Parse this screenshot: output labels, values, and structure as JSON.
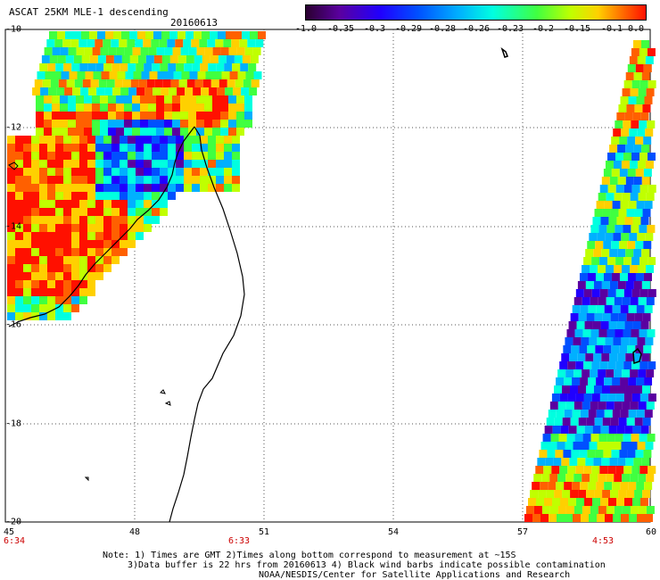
{
  "header": {
    "title": "ASCAT 25KM MLE-1 descending",
    "date": "20160613"
  },
  "colorbar": {
    "ticks": [
      "-1.0",
      "-0.35",
      "-0.3",
      "-0.29",
      "-0.28",
      "-0.26",
      "-0.23",
      "-0.2",
      "-0.15",
      "-0.1",
      "0.0"
    ],
    "colors": [
      "#2a0030",
      "#5a00a0",
      "#2000ff",
      "#0050ff",
      "#00b0ff",
      "#00ffe0",
      "#40ff40",
      "#c0ff00",
      "#ffd000",
      "#ff6000",
      "#ff1000"
    ]
  },
  "axes": {
    "lat_labels": [
      "-10",
      "-12",
      "-14",
      "-16",
      "-18",
      "-20"
    ],
    "lon_labels": [
      "45",
      "48",
      "51",
      "54",
      "57",
      "60"
    ],
    "times": [
      "6:34",
      "6:33",
      "4:53"
    ]
  },
  "notes": {
    "line1": "Note: 1) Times are GMT 2)Times along bottom correspond to measurement at ~15S",
    "line2": "3)Data buffer is 22 hrs from 20160613 4) Black wind barbs indicate possible contamination",
    "line3": "NOAA/NESDIS/Center for Satellite Applications and Research"
  }
}
